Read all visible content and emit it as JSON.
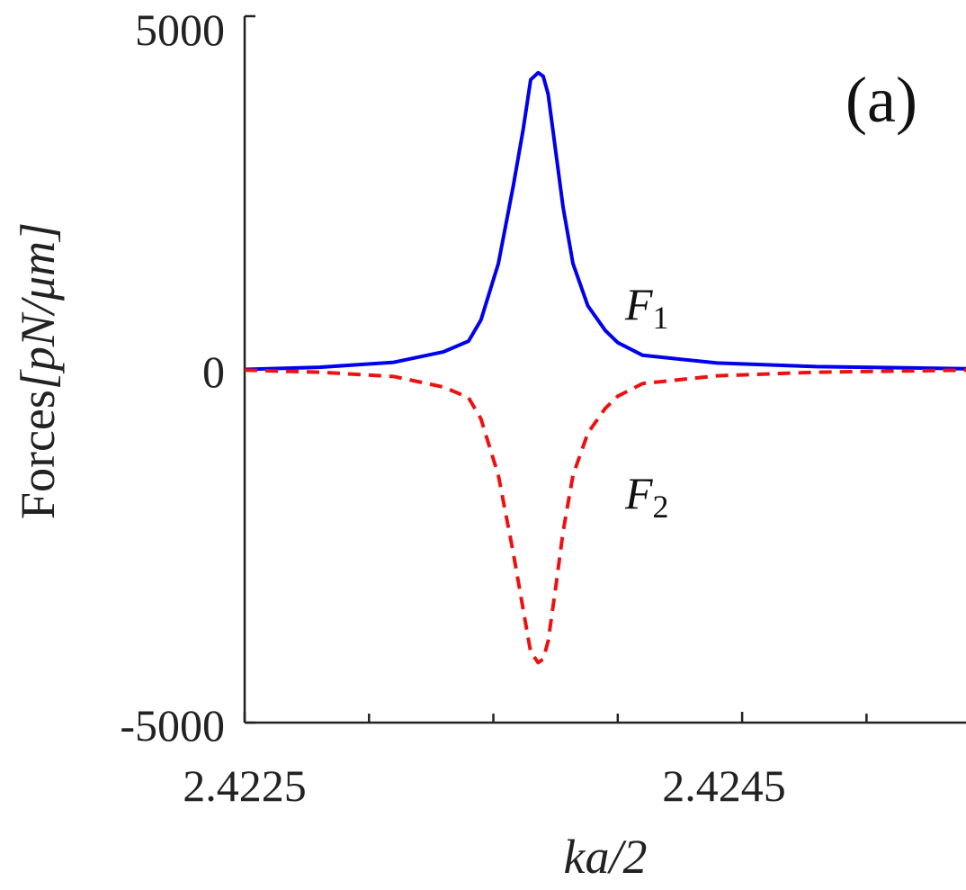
{
  "chart_data": {
    "type": "line",
    "panel_label": "(a)",
    "xlabel": "ka/2",
    "ylabel_prefix": "Forces",
    "ylabel_units": "[pN/μm]",
    "xlim": [
      2.4225,
      2.4254
    ],
    "ylim": [
      -5000,
      5000
    ],
    "xticks": [
      2.4225,
      2.4245
    ],
    "xtick_labels": [
      "2.4225",
      "2.4245"
    ],
    "xticks_minor": [
      2.423,
      2.4235,
      2.424,
      2.425
    ],
    "yticks": [
      -5000,
      0,
      5000
    ],
    "ytick_labels": [
      "-5000",
      "0",
      "5000"
    ],
    "grid": false,
    "series": [
      {
        "name": "F1",
        "label_main": "F",
        "label_sub": "1",
        "color": "#0000ee",
        "style": "solid",
        "x": [
          2.4225,
          2.4228,
          2.4231,
          2.4233,
          2.4234,
          2.42345,
          2.42352,
          2.42358,
          2.42362,
          2.42365,
          2.42368,
          2.4237,
          2.42372,
          2.42375,
          2.42378,
          2.42382,
          2.42388,
          2.42395,
          2.424,
          2.4241,
          2.4244,
          2.4248,
          2.4254
        ],
        "values": [
          0,
          30,
          100,
          250,
          400,
          700,
          1500,
          2600,
          3400,
          4100,
          4200,
          4150,
          3900,
          3100,
          2300,
          1500,
          900,
          550,
          380,
          200,
          90,
          40,
          10
        ]
      },
      {
        "name": "F2",
        "label_main": "F",
        "label_sub": "2",
        "color": "#ee1111",
        "style": "dashed",
        "x": [
          2.4225,
          2.4228,
          2.4231,
          2.4233,
          2.4234,
          2.42345,
          2.42352,
          2.42358,
          2.42362,
          2.42365,
          2.42368,
          2.4237,
          2.42372,
          2.42375,
          2.42378,
          2.42382,
          2.42388,
          2.42395,
          2.424,
          2.4241,
          2.4244,
          2.4248,
          2.4254
        ],
        "values": [
          -10,
          -40,
          -100,
          -250,
          -400,
          -700,
          -1500,
          -2600,
          -3400,
          -4000,
          -4150,
          -4100,
          -3850,
          -3100,
          -2300,
          -1500,
          -900,
          -550,
          -380,
          -200,
          -90,
          -40,
          -10
        ]
      }
    ]
  }
}
